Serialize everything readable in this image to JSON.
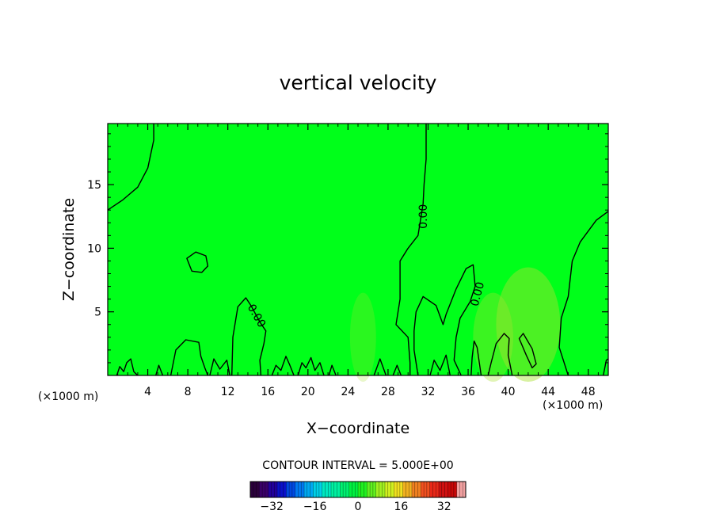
{
  "chart_data": {
    "type": "contour",
    "title": "vertical velocity",
    "xlabel": "X−coordinate",
    "ylabel": "Z−coordinate",
    "x_unit": "(×1000 m)",
    "x_unit_left": "(×1000 m)",
    "xlim": [
      0,
      50
    ],
    "ylim": [
      0,
      19.8
    ],
    "x_ticks": [
      4,
      8,
      12,
      16,
      20,
      24,
      28,
      32,
      36,
      40,
      44,
      48
    ],
    "x_tick_labels": [
      "4",
      "8",
      "12",
      "16",
      "20",
      "24",
      "28",
      "32",
      "36",
      "40",
      "44",
      "48"
    ],
    "y_ticks": [
      5,
      10,
      15
    ],
    "y_tick_labels": [
      "5",
      "10",
      "15"
    ],
    "background_color": "#00ff1a",
    "contour_interval_text": "CONTOUR INTERVAL = 5.000E+00",
    "contour_labels": [
      {
        "text": "0.00",
        "x": 31.5,
        "y": 12.5,
        "angle": -90
      },
      {
        "text": "0.00",
        "x": 36.9,
        "y": 6.4,
        "angle": -75
      },
      {
        "text": "0.00",
        "x": 14.9,
        "y": 4.7,
        "angle": 60
      }
    ],
    "contours": [
      {
        "level": 0,
        "points": [
          [
            0,
            13
          ],
          [
            1.5,
            13.8
          ],
          [
            3,
            14.8
          ],
          [
            4,
            16.3
          ],
          [
            4.6,
            18.5
          ],
          [
            4.6,
            19.8
          ]
        ]
      },
      {
        "level": 0,
        "points": [
          [
            31.8,
            19.8
          ],
          [
            31.8,
            17
          ],
          [
            31.6,
            15
          ],
          [
            31.5,
            13.5
          ],
          [
            31,
            11
          ],
          [
            30,
            10
          ],
          [
            29.2,
            9
          ],
          [
            29.2,
            6
          ],
          [
            28.8,
            4
          ],
          [
            30,
            3
          ],
          [
            30.2,
            1
          ],
          [
            30.2,
            0
          ]
        ]
      },
      {
        "level": 0,
        "points": [
          [
            31,
            0
          ],
          [
            30.6,
            2
          ],
          [
            30.6,
            3.5
          ],
          [
            30.8,
            5
          ],
          [
            31.5,
            6.2
          ],
          [
            32.8,
            5.5
          ],
          [
            33.5,
            4
          ],
          [
            33.8,
            4.8
          ],
          [
            34.8,
            6.8
          ],
          [
            35.8,
            8.4
          ],
          [
            36.5,
            8.7
          ],
          [
            36.7,
            7
          ],
          [
            36.2,
            5.8
          ],
          [
            35.2,
            4.5
          ],
          [
            34.8,
            3
          ],
          [
            34.6,
            1.2
          ],
          [
            35.3,
            0
          ]
        ]
      },
      {
        "level": 0,
        "points": [
          [
            50,
            12.9
          ],
          [
            48.8,
            12.2
          ],
          [
            47.2,
            10.5
          ],
          [
            46.4,
            9
          ],
          [
            46,
            6.2
          ],
          [
            45.3,
            4.5
          ],
          [
            45.1,
            2.2
          ],
          [
            46,
            0
          ]
        ]
      },
      {
        "level": 0,
        "closed": true,
        "points": [
          [
            7.9,
            9.2
          ],
          [
            8.8,
            9.7
          ],
          [
            9.8,
            9.4
          ],
          [
            10,
            8.6
          ],
          [
            9.4,
            8.1
          ],
          [
            8.4,
            8.2
          ]
        ]
      },
      {
        "level": 0,
        "points": [
          [
            12.4,
            0
          ],
          [
            12.5,
            3
          ],
          [
            13,
            5.4
          ],
          [
            13.8,
            6.1
          ],
          [
            14.3,
            5.5
          ],
          [
            15.2,
            4.2
          ],
          [
            15.8,
            3.5
          ],
          [
            15.6,
            2.5
          ],
          [
            15.2,
            1.2
          ],
          [
            15.3,
            0
          ]
        ]
      },
      {
        "level": 0,
        "points": [
          [
            6.3,
            0
          ],
          [
            6.8,
            2
          ],
          [
            7.8,
            2.8
          ],
          [
            9.1,
            2.6
          ],
          [
            9.3,
            1.5
          ],
          [
            9.7,
            0.6
          ],
          [
            10,
            0
          ]
        ]
      },
      {
        "level": 0,
        "points": [
          [
            38,
            0
          ],
          [
            38.3,
            1
          ],
          [
            38.8,
            2.5
          ],
          [
            39.6,
            3.3
          ],
          [
            40.1,
            2.9
          ],
          [
            40,
            1.6
          ],
          [
            40.4,
            0
          ]
        ]
      },
      {
        "level": 0,
        "points": [
          [
            36.3,
            0
          ],
          [
            36.4,
            1.4
          ],
          [
            36.6,
            2.7
          ],
          [
            36.9,
            2.2
          ],
          [
            37.3,
            0
          ]
        ]
      },
      {
        "level": 5,
        "closed": true,
        "points": [
          [
            41.1,
            2.9
          ],
          [
            41.5,
            3.3
          ],
          [
            42.4,
            2.1
          ],
          [
            42.8,
            0.9
          ],
          [
            42.4,
            0.6
          ],
          [
            41.8,
            1.6
          ]
        ]
      },
      {
        "level": 0,
        "points": [
          [
            0.9,
            0
          ],
          [
            1.2,
            0.7
          ],
          [
            1.6,
            0.3
          ],
          [
            1.9,
            1
          ],
          [
            2.3,
            1.3
          ],
          [
            2.6,
            0.3
          ],
          [
            3,
            0
          ]
        ]
      },
      {
        "level": 0,
        "points": [
          [
            4.8,
            0
          ],
          [
            5.1,
            0.8
          ],
          [
            5.5,
            0
          ]
        ]
      },
      {
        "level": 0,
        "points": [
          [
            10.2,
            0
          ],
          [
            10.6,
            1.3
          ],
          [
            11.2,
            0.5
          ],
          [
            11.9,
            1.2
          ],
          [
            12.2,
            0
          ]
        ]
      },
      {
        "level": 0,
        "points": [
          [
            16.4,
            0
          ],
          [
            16.8,
            0.8
          ],
          [
            17.3,
            0.4
          ],
          [
            17.8,
            1.5
          ],
          [
            18.2,
            0.8
          ],
          [
            18.6,
            0
          ]
        ]
      },
      {
        "level": 0,
        "points": [
          [
            19,
            0
          ],
          [
            19.4,
            1
          ],
          [
            19.8,
            0.6
          ],
          [
            20.3,
            1.4
          ],
          [
            20.7,
            0.4
          ],
          [
            21.2,
            1
          ],
          [
            21.6,
            0
          ]
        ]
      },
      {
        "level": 0,
        "points": [
          [
            22.1,
            0
          ],
          [
            22.4,
            0.8
          ],
          [
            22.8,
            0
          ]
        ]
      },
      {
        "level": 0,
        "points": [
          [
            26.6,
            0
          ],
          [
            27.2,
            1.3
          ],
          [
            27.8,
            0
          ]
        ]
      },
      {
        "level": 0,
        "points": [
          [
            28.5,
            0
          ],
          [
            28.9,
            0.8
          ],
          [
            29.3,
            0
          ]
        ]
      },
      {
        "level": 0,
        "points": [
          [
            32.2,
            0
          ],
          [
            32.6,
            1.2
          ],
          [
            33.2,
            0.4
          ],
          [
            33.8,
            1.6
          ],
          [
            34.2,
            0
          ]
        ]
      },
      {
        "level": 0,
        "points": [
          [
            49.5,
            0
          ],
          [
            49.8,
            1.2
          ],
          [
            50,
            1.3
          ]
        ]
      }
    ],
    "colorbar": {
      "ticks": [
        -32,
        -16,
        0,
        16,
        32
      ],
      "tick_labels": [
        "−32",
        "−16",
        "0",
        "16",
        "32"
      ],
      "range": [
        -40,
        40
      ],
      "colors": [
        "#2a003a",
        "#3a0068",
        "#22009a",
        "#0a10c8",
        "#0048e0",
        "#0078f0",
        "#00a8f0",
        "#00d0e8",
        "#00e8c0",
        "#00f0a0",
        "#00f070",
        "#00f040",
        "#20f020",
        "#60f020",
        "#a0f020",
        "#d0f020",
        "#f0e020",
        "#f0b020",
        "#f08020",
        "#f05020",
        "#e82818",
        "#d01010",
        "#c80808",
        "#f0a0a0"
      ]
    }
  }
}
